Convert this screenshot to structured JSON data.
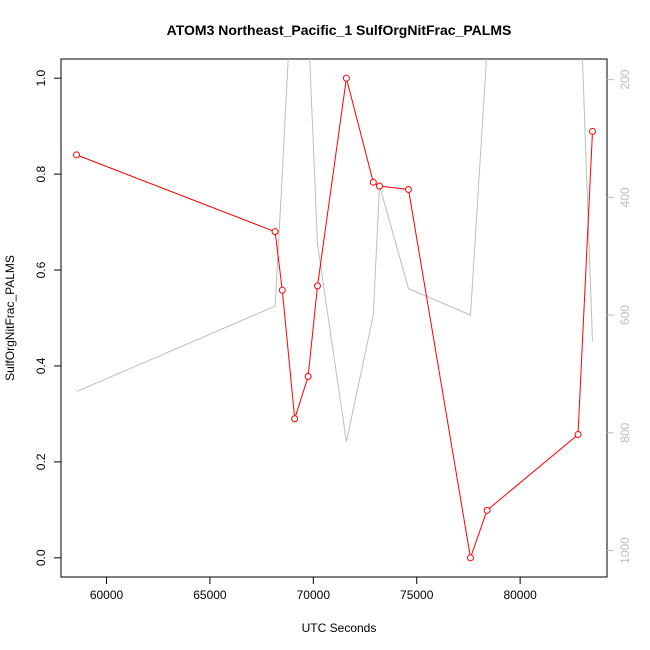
{
  "chart_data": {
    "type": "line",
    "title": "ATOM3 Northeast_Pacific_1 SulfOrgNitFrac_PALMS",
    "xlabel": "UTC Seconds",
    "ylabel": "SulfOrgNitFrac_PALMS",
    "xlim": [
      57800,
      84200
    ],
    "ylim": [
      -0.04,
      1.04
    ],
    "y2lim": [
      1045,
      165
    ],
    "x_ticks": [
      60000,
      65000,
      70000,
      75000,
      80000
    ],
    "y_ticks": [
      0.0,
      0.2,
      0.4,
      0.6,
      0.8,
      1.0
    ],
    "y2_ticks": [
      200,
      400,
      600,
      800,
      1000
    ],
    "grid": false,
    "series": [
      {
        "color": "#ff0000",
        "marker": "circle",
        "axis": "left",
        "x": [
          58550,
          68150,
          68500,
          69100,
          69750,
          70200,
          71600,
          72900,
          73200,
          74600,
          77600,
          78400,
          82800,
          83500
        ],
        "y": [
          0.84,
          0.68,
          0.558,
          0.29,
          0.378,
          0.567,
          1.0,
          0.783,
          0.775,
          0.768,
          0.0,
          0.099,
          0.257,
          0.889
        ]
      },
      {
        "color": "#bdbdbd",
        "marker": "none",
        "axis": "right",
        "x": [
          58550,
          68150,
          68500,
          69100,
          69750,
          70200,
          71600,
          72900,
          73200,
          74600,
          77600,
          78400,
          82800,
          83500
        ],
        "y": [
          730,
          585,
          360,
          -50,
          100,
          480,
          815,
          600,
          380,
          555,
          600,
          150,
          -50,
          645
        ]
      }
    ]
  }
}
